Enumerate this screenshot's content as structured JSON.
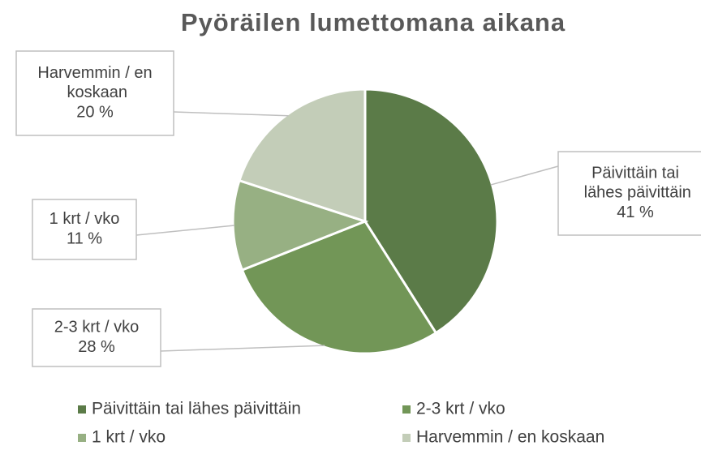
{
  "chart_data": {
    "type": "pie",
    "title": "Pyöräilen lumettomana aikana",
    "categories": [
      "Päivittäin tai lähes päivittäin",
      "2-3 krt / vko",
      "1 krt / vko",
      "Harvemmin / en koskaan"
    ],
    "values": [
      41,
      28,
      11,
      20
    ],
    "value_labels": [
      "41 %",
      "28 %",
      "11 %",
      "20 %"
    ],
    "colors": [
      "#5b7b48",
      "#729657",
      "#97b083",
      "#c3cdb8"
    ],
    "legend": "bottom"
  }
}
